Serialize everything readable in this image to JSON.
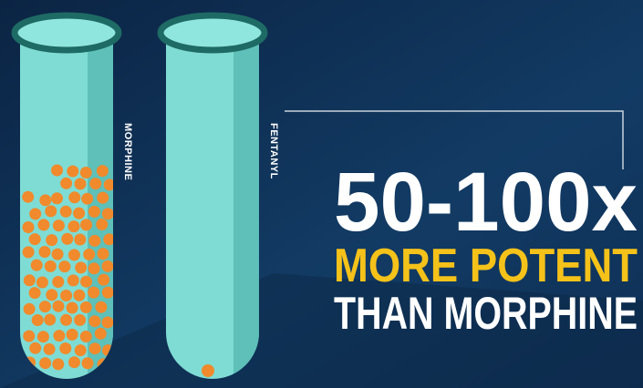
{
  "labels": {
    "left_tube": "MORPHINE",
    "right_tube": "FENTANYL"
  },
  "headline": {
    "figure": "50-100x",
    "line1": "MORE POTENT",
    "line2": "THAN MORPHINE"
  }
}
